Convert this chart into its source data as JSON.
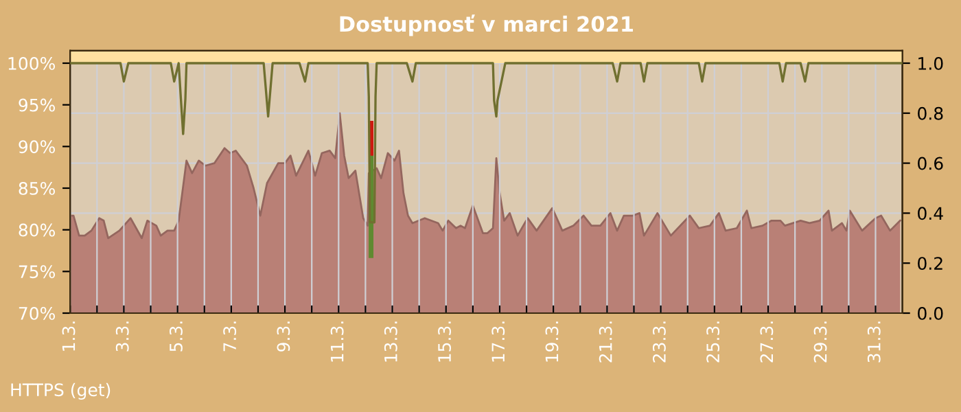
{
  "chart_data": {
    "type": "area",
    "title": "Dostupnosť v marci 2021",
    "annotations": [
      "HTTPS (get)"
    ],
    "xlim": [
      "2021-03-01",
      "2021-04-01"
    ],
    "xticks": [
      {
        "value": "2021-03-01",
        "label": "1.3."
      },
      {
        "value": "2021-03-02",
        "label": null
      },
      {
        "value": "2021-03-03",
        "label": "3.3."
      },
      {
        "value": "2021-03-04",
        "label": null
      },
      {
        "value": "2021-03-05",
        "label": "5.3."
      },
      {
        "value": "2021-03-06",
        "label": null
      },
      {
        "value": "2021-03-07",
        "label": "7.3."
      },
      {
        "value": "2021-03-08",
        "label": null
      },
      {
        "value": "2021-03-09",
        "label": "9.3."
      },
      {
        "value": "2021-03-10",
        "label": null
      },
      {
        "value": "2021-03-11",
        "label": "11.3."
      },
      {
        "value": "2021-03-12",
        "label": null
      },
      {
        "value": "2021-03-13",
        "label": "13.3."
      },
      {
        "value": "2021-03-14",
        "label": null
      },
      {
        "value": "2021-03-15",
        "label": "15.3."
      },
      {
        "value": "2021-03-16",
        "label": null
      },
      {
        "value": "2021-03-17",
        "label": "17.3."
      },
      {
        "value": "2021-03-18",
        "label": null
      },
      {
        "value": "2021-03-19",
        "label": "19.3."
      },
      {
        "value": "2021-03-20",
        "label": null
      },
      {
        "value": "2021-03-21",
        "label": "21.3."
      },
      {
        "value": "2021-03-22",
        "label": null
      },
      {
        "value": "2021-03-23",
        "label": "23.3."
      },
      {
        "value": "2021-03-24",
        "label": null
      },
      {
        "value": "2021-03-25",
        "label": "25.3."
      },
      {
        "value": "2021-03-26",
        "label": null
      },
      {
        "value": "2021-03-27",
        "label": "27.3."
      },
      {
        "value": "2021-03-28",
        "label": null
      },
      {
        "value": "2021-03-29",
        "label": "29.3."
      },
      {
        "value": "2021-03-30",
        "label": null
      },
      {
        "value": "2021-03-31",
        "label": "31.3."
      }
    ],
    "ylim": [
      70,
      101.5
    ],
    "yticks": [
      {
        "value": 70,
        "label": "70%"
      },
      {
        "value": 75,
        "label": "75%"
      },
      {
        "value": 80,
        "label": "80%"
      },
      {
        "value": 85,
        "label": "85%"
      },
      {
        "value": 90,
        "label": "90%"
      },
      {
        "value": 95,
        "label": "95%"
      },
      {
        "value": 100,
        "label": "100%"
      }
    ],
    "y2lim": [
      0,
      1.05
    ],
    "y2ticks": [
      {
        "value": 0,
        "label": "0.0"
      },
      {
        "value": 0.2,
        "label": "0.2"
      },
      {
        "value": 0.4,
        "label": "0.4"
      },
      {
        "value": 0.6,
        "label": "0.6"
      },
      {
        "value": 0.8,
        "label": "0.8"
      },
      {
        "value": 1.0,
        "label": "1.0"
      }
    ],
    "grid": true,
    "bands": [
      {
        "axis": "y",
        "from": 100,
        "to": 101.5,
        "color": "#ffe0a0"
      }
    ],
    "series": [
      {
        "axis": "y2",
        "color": "#b98076",
        "x": [
          "2021-03-01T00:00",
          "2021-03-01T03:00",
          "2021-03-01T08:00",
          "2021-03-01T13:00",
          "2021-03-01T19:00",
          "2021-03-02T02:00",
          "2021-03-02T06:00",
          "2021-03-02T10:00",
          "2021-03-02T20:00",
          "2021-03-03T06:00",
          "2021-03-03T16:00",
          "2021-03-03T21:00",
          "2021-03-04T05:00",
          "2021-03-04T09:00",
          "2021-03-04T15:00",
          "2021-03-04T21:00",
          "2021-03-05T01:00",
          "2021-03-05T08:00",
          "2021-03-05T13:00",
          "2021-03-05T19:00",
          "2021-03-06T01:00",
          "2021-03-06T09:00",
          "2021-03-06T18:00",
          "2021-03-06T23:00",
          "2021-03-07T04:00",
          "2021-03-07T14:00",
          "2021-03-07T20:00",
          "2021-03-08T02:00",
          "2021-03-08T08:00",
          "2021-03-08T18:00",
          "2021-03-09T00:00",
          "2021-03-09T05:00",
          "2021-03-09T10:00",
          "2021-03-09T21:00",
          "2021-03-10T03:00",
          "2021-03-10T09:00",
          "2021-03-10T16:00",
          "2021-03-10T21:00",
          "2021-03-11T01:00",
          "2021-03-11T05:00",
          "2021-03-11T09:00",
          "2021-03-11T15:00",
          "2021-03-11T22:00",
          "2021-03-12T02:00",
          "2021-03-12T03:00",
          "2021-03-12T10:00",
          "2021-03-12T14:00",
          "2021-03-12T20:00",
          "2021-03-13T02:00",
          "2021-03-13T06:00",
          "2021-03-13T10:00",
          "2021-03-13T14:00",
          "2021-03-13T18:00",
          "2021-03-14T05:00",
          "2021-03-14T17:00",
          "2021-03-14T21:00",
          "2021-03-15T02:00",
          "2021-03-15T09:00",
          "2021-03-15T13:00",
          "2021-03-15T17:00",
          "2021-03-16T00:00",
          "2021-03-16T09:00",
          "2021-03-16T13:00",
          "2021-03-16T18:00",
          "2021-03-16T21:00",
          "2021-03-17T00:00",
          "2021-03-17T04:00",
          "2021-03-17T09:00",
          "2021-03-17T16:00",
          "2021-03-18T01:00",
          "2021-03-18T09:00",
          "2021-03-18T23:00",
          "2021-03-19T08:00",
          "2021-03-19T18:00",
          "2021-03-20T03:00",
          "2021-03-20T10:00",
          "2021-03-20T18:00",
          "2021-03-21T03:00",
          "2021-03-21T09:00",
          "2021-03-21T15:00",
          "2021-03-21T23:00",
          "2021-03-22T05:00",
          "2021-03-22T09:00",
          "2021-03-22T21:00",
          "2021-03-23T09:00",
          "2021-03-24T02:00",
          "2021-03-24T10:00",
          "2021-03-24T20:00",
          "2021-03-25T04:00",
          "2021-03-25T10:00",
          "2021-03-25T20:00",
          "2021-03-26T05:00",
          "2021-03-26T09:00",
          "2021-03-26T19:00",
          "2021-03-27T03:00",
          "2021-03-27T11:00",
          "2021-03-27T15:00",
          "2021-03-28T05:00",
          "2021-03-28T13:00",
          "2021-03-28T22:00",
          "2021-03-29T06:00",
          "2021-03-29T09:00",
          "2021-03-29T18:00",
          "2021-03-29T22:00",
          "2021-03-30T01:00",
          "2021-03-30T12:00",
          "2021-03-31T00:00",
          "2021-03-31T05:00",
          "2021-03-31T13:00",
          "2021-03-31T22:00"
        ],
        "values": [
          0.39,
          0.39,
          0.31,
          0.31,
          0.33,
          0.38,
          0.37,
          0.3,
          0.33,
          0.38,
          0.3,
          0.37,
          0.35,
          0.31,
          0.33,
          0.33,
          0.37,
          0.61,
          0.56,
          0.61,
          0.59,
          0.6,
          0.66,
          0.64,
          0.65,
          0.59,
          0.5,
          0.39,
          0.52,
          0.6,
          0.6,
          0.63,
          0.55,
          0.65,
          0.55,
          0.64,
          0.65,
          0.62,
          0.8,
          0.63,
          0.54,
          0.57,
          0.38,
          0.35,
          0.56,
          0.58,
          0.54,
          0.64,
          0.61,
          0.65,
          0.48,
          0.39,
          0.36,
          0.38,
          0.36,
          0.33,
          0.37,
          0.34,
          0.35,
          0.34,
          0.43,
          0.32,
          0.32,
          0.34,
          0.62,
          0.48,
          0.37,
          0.4,
          0.31,
          0.38,
          0.33,
          0.42,
          0.33,
          0.35,
          0.39,
          0.35,
          0.35,
          0.4,
          0.33,
          0.39,
          0.39,
          0.4,
          0.31,
          0.4,
          0.31,
          0.39,
          0.34,
          0.35,
          0.4,
          0.33,
          0.34,
          0.41,
          0.34,
          0.35,
          0.37,
          0.37,
          0.35,
          0.37,
          0.36,
          0.37,
          0.41,
          0.33,
          0.36,
          0.33,
          0.41,
          0.33,
          0.38,
          0.39,
          0.33,
          0.37
        ]
      },
      {
        "type": "line",
        "axis": "y",
        "color": "#707030",
        "x": [
          "2021-03-01T00:00",
          "2021-03-02T21:00",
          "2021-03-03T00:00",
          "2021-03-03T04:00",
          "2021-03-04T18:00",
          "2021-03-04T21:00",
          "2021-03-05T01:00",
          "2021-03-05T03:00",
          "2021-03-05T05:00",
          "2021-03-05T07:00",
          "2021-03-05T08:00",
          "2021-03-08T05:00",
          "2021-03-08T09:00",
          "2021-03-08T13:00",
          "2021-03-09T13:00",
          "2021-03-09T18:00",
          "2021-03-09T21:00",
          "2021-03-12T02:00",
          "2021-03-12T03:00",
          "2021-03-12T04:00",
          "2021-03-12T08:00",
          "2021-03-12T09:00",
          "2021-03-12T10:00",
          "2021-03-13T13:00",
          "2021-03-13T18:00",
          "2021-03-13T21:00",
          "2021-03-16T18:00",
          "2021-03-16T19:00",
          "2021-03-16T21:00",
          "2021-03-16T22:00",
          "2021-03-17T05:00",
          "2021-03-21T05:00",
          "2021-03-21T09:00",
          "2021-03-21T12:00",
          "2021-03-22T06:00",
          "2021-03-22T09:00",
          "2021-03-22T12:00",
          "2021-03-24T10:00",
          "2021-03-24T13:00",
          "2021-03-24T16:00",
          "2021-03-27T10:00",
          "2021-03-27T13:00",
          "2021-03-27T16:00",
          "2021-03-28T05:00",
          "2021-03-28T09:00",
          "2021-03-28T12:00",
          "2021-04-01T00:00"
        ],
        "values": [
          100,
          100,
          97.8,
          100,
          100,
          97.8,
          100,
          95.7,
          91.5,
          95.7,
          100,
          100,
          93.6,
          100,
          100,
          97.8,
          100,
          100,
          96,
          80.9,
          80.9,
          96,
          100,
          100,
          97.8,
          100,
          100,
          95.5,
          93.6,
          95.5,
          100,
          100,
          97.8,
          100,
          100,
          97.8,
          100,
          100,
          97.8,
          100,
          100,
          97.8,
          100,
          100,
          97.8,
          100,
          100
        ]
      },
      {
        "type": "line",
        "axis": "y2",
        "color": "#cc1a10",
        "x": [
          "2021-03-12T05:00",
          "2021-03-12T05:00"
        ],
        "values": [
          0.62,
          0.76
        ]
      },
      {
        "type": "line",
        "axis": "y2",
        "color": "#5f8a30",
        "x": [
          "2021-03-12T05:00",
          "2021-03-12T05:00"
        ],
        "values": [
          0.23,
          0.62
        ]
      }
    ]
  }
}
